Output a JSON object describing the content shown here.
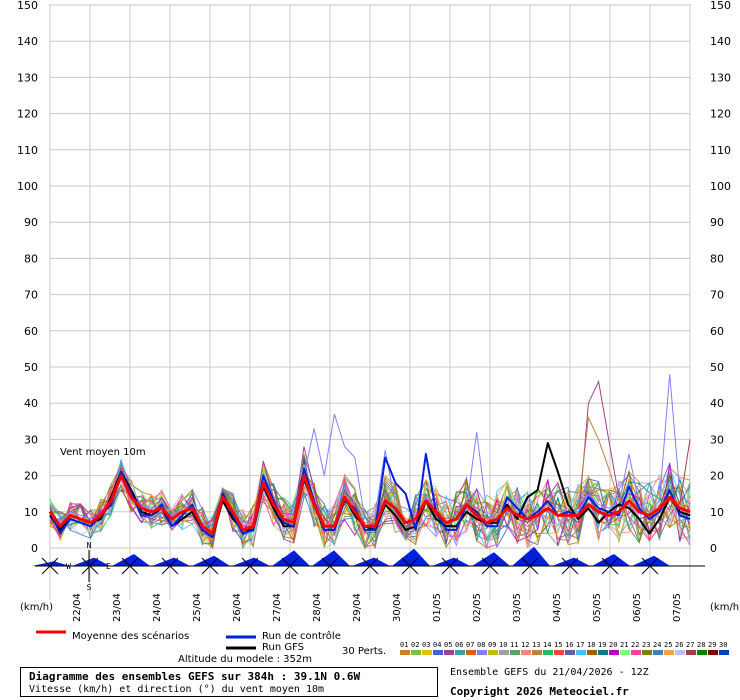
{
  "chart_data": {
    "type": "line",
    "y_unit_label": "(km/h)",
    "ylim": [
      0,
      150
    ],
    "yticks": [
      0,
      10,
      20,
      30,
      40,
      50,
      60,
      70,
      80,
      90,
      100,
      110,
      120,
      130,
      140,
      150
    ],
    "x_dates": [
      "22/04",
      "23/04",
      "24/04",
      "25/04",
      "26/04",
      "27/04",
      "28/04",
      "29/04",
      "30/04",
      "01/05",
      "02/05",
      "03/05",
      "04/05",
      "05/05",
      "06/05",
      "07/05"
    ],
    "annotation": "Vent moyen 10m",
    "mean_series": [
      10,
      6,
      9,
      8,
      7,
      9,
      13,
      20,
      14,
      11,
      10,
      11,
      8,
      10,
      11,
      6,
      4,
      14,
      10,
      5,
      6,
      18,
      12,
      8,
      7,
      20,
      12,
      6,
      6,
      14,
      10,
      6,
      6,
      13,
      11,
      7,
      8,
      13,
      10,
      7,
      8,
      12,
      9,
      7,
      8,
      11,
      9,
      8,
      9,
      11,
      9,
      9,
      9,
      12,
      10,
      9,
      10,
      13,
      10,
      9,
      11,
      14,
      11,
      10
    ],
    "control_series": [
      10,
      4,
      8,
      7,
      6,
      9,
      12,
      21,
      15,
      9,
      9,
      12,
      6,
      9,
      12,
      5,
      3,
      15,
      9,
      4,
      5,
      20,
      13,
      7,
      6,
      22,
      13,
      5,
      5,
      13,
      11,
      5,
      5,
      25,
      18,
      15,
      5,
      26,
      10,
      5,
      5,
      12,
      10,
      6,
      6,
      14,
      11,
      8,
      10,
      13,
      9,
      10,
      9,
      14,
      11,
      10,
      9,
      17,
      11,
      8,
      10,
      16,
      9,
      8
    ],
    "gfs_series": [
      9,
      5,
      9,
      8,
      7,
      8,
      14,
      21,
      16,
      10,
      9,
      11,
      6,
      8,
      10,
      5,
      3,
      13,
      8,
      5,
      5,
      17,
      11,
      6,
      6,
      19,
      12,
      5,
      5,
      14,
      9,
      6,
      5,
      12,
      9,
      5,
      6,
      13,
      8,
      6,
      6,
      10,
      8,
      7,
      7,
      12,
      8,
      14,
      16,
      29,
      21,
      12,
      8,
      11,
      7,
      10,
      12,
      11,
      8,
      4,
      8,
      14,
      10,
      9
    ],
    "perturbation_highlights": [
      {
        "name": "05",
        "values": [
          10,
          5,
          8,
          7,
          8,
          10,
          12,
          22,
          16,
          9,
          8,
          10,
          5,
          8,
          9,
          4,
          3,
          16,
          9,
          4,
          6,
          24,
          14,
          7,
          8,
          28,
          16,
          6,
          6,
          16,
          12,
          6,
          7,
          16,
          10,
          6,
          7,
          14,
          9,
          7,
          8,
          13,
          9,
          6,
          8,
          12,
          8,
          7,
          9,
          14,
          18,
          9,
          7,
          40,
          46,
          30,
          14,
          12,
          8,
          9,
          11,
          16,
          10,
          7
        ]
      },
      {
        "name": "08",
        "values": [
          10,
          7,
          10,
          9,
          8,
          9,
          13,
          19,
          13,
          12,
          11,
          12,
          9,
          11,
          12,
          7,
          6,
          13,
          11,
          7,
          8,
          17,
          13,
          9,
          8,
          20,
          33,
          20,
          37,
          28,
          25,
          8,
          9,
          27,
          12,
          11,
          9,
          14,
          11,
          8,
          9,
          11,
          32,
          10,
          8,
          10,
          11,
          9,
          10,
          12,
          11,
          10,
          10,
          15,
          12,
          11,
          12,
          26,
          12,
          10,
          13,
          48,
          15,
          12
        ]
      },
      {
        "name": "13",
        "values": [
          9,
          6,
          9,
          8,
          7,
          8,
          13,
          19,
          14,
          11,
          10,
          12,
          8,
          11,
          11,
          6,
          5,
          14,
          11,
          5,
          7,
          18,
          13,
          9,
          8,
          21,
          13,
          7,
          6,
          15,
          11,
          7,
          7,
          14,
          12,
          8,
          8,
          15,
          11,
          8,
          9,
          13,
          10,
          8,
          9,
          12,
          10,
          9,
          10,
          12,
          10,
          10,
          11,
          36,
          30,
          22,
          13,
          14,
          11,
          10,
          12,
          15,
          12,
          11
        ]
      },
      {
        "name": "27",
        "values": [
          10,
          6,
          9,
          8,
          7,
          9,
          13,
          20,
          14,
          11,
          10,
          11,
          8,
          10,
          11,
          6,
          4,
          14,
          10,
          5,
          6,
          18,
          12,
          8,
          7,
          20,
          12,
          6,
          6,
          14,
          10,
          6,
          6,
          13,
          11,
          7,
          8,
          13,
          10,
          7,
          8,
          12,
          9,
          7,
          8,
          11,
          9,
          8,
          9,
          11,
          9,
          9,
          9,
          12,
          10,
          9,
          10,
          13,
          10,
          9,
          11,
          20,
          12,
          30
        ]
      }
    ],
    "direction_markers": [
      {
        "size": 0.1
      },
      {
        "size": 0.3
      },
      {
        "size": 0.5
      },
      {
        "size": 0.3
      },
      {
        "size": 0.4
      },
      {
        "size": 0.3
      },
      {
        "size": 0.7
      },
      {
        "size": 0.7
      },
      {
        "size": 0.3
      },
      {
        "size": 0.8
      },
      {
        "size": 0.3
      },
      {
        "size": 0.6
      },
      {
        "size": 0.9
      },
      {
        "size": 0.3
      },
      {
        "size": 0.5
      },
      {
        "size": 0.4
      }
    ]
  },
  "legend": {
    "mean_label": "Moyenne des scénarios",
    "control_label": "Run de contrôle",
    "gfs_label": "Run GFS",
    "perts_label": "30 Perts.",
    "pert_numbers": [
      "01",
      "02",
      "03",
      "04",
      "05",
      "06",
      "07",
      "08",
      "09",
      "10",
      "11",
      "12",
      "13",
      "14",
      "15",
      "16",
      "17",
      "18",
      "19",
      "20",
      "21",
      "22",
      "23",
      "24",
      "25",
      "26",
      "27",
      "28",
      "29",
      "30"
    ],
    "pert_colors": [
      "#d08020",
      "#80c040",
      "#e0c000",
      "#4060e0",
      "#a04090",
      "#40a0a0",
      "#e06000",
      "#8080ff",
      "#c0c000",
      "#a0a0a0",
      "#60a060",
      "#ff8080",
      "#c08040",
      "#20c060",
      "#ff4040",
      "#6060a0",
      "#40c0ff",
      "#a06000",
      "#008080",
      "#c000c0",
      "#80ff80",
      "#ff40a0",
      "#808000",
      "#4080c0",
      "#ffa040",
      "#c0c0ff",
      "#a04040",
      "#008000",
      "#800000",
      "#0040c0"
    ],
    "mean_color": "#ff0000",
    "control_color": "#0020e0",
    "gfs_color": "#000000"
  },
  "altitude": "Altitude du modele : 352m",
  "info": {
    "title": "Diagramme des ensembles GEFS sur 384h : 39.1N 0.6W",
    "subtitle": "Vitesse (km/h) et direction (°) du vent moyen 10m"
  },
  "run_info": "Ensemble GEFS du 21/04/2026 - 12Z",
  "copyright": "Copyright 2026 Meteociel.fr",
  "compass": {
    "n": "N",
    "s": "S",
    "e": "E",
    "w": "W"
  }
}
